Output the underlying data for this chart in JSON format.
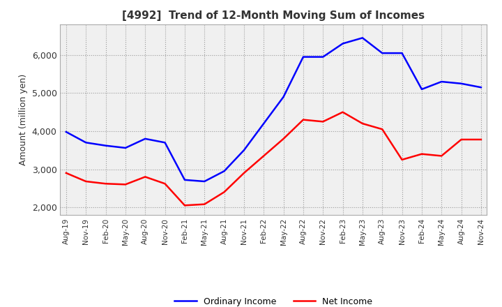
{
  "title": "[4992]  Trend of 12-Month Moving Sum of Incomes",
  "ylabel": "Amount (million yen)",
  "ylim": [
    1800,
    6800
  ],
  "yticks": [
    2000,
    3000,
    4000,
    5000,
    6000
  ],
  "legend_labels": [
    "Ordinary Income",
    "Net Income"
  ],
  "line_colors": [
    "blue",
    "red"
  ],
  "bg_color": "#f0f0f0",
  "x_labels": [
    "Aug-19",
    "Nov-19",
    "Feb-20",
    "May-20",
    "Aug-20",
    "Nov-20",
    "Feb-21",
    "May-21",
    "Aug-21",
    "Nov-21",
    "Feb-22",
    "May-22",
    "Aug-22",
    "Nov-22",
    "Feb-23",
    "May-23",
    "Aug-23",
    "Nov-23",
    "Feb-24",
    "May-24",
    "Aug-24",
    "Nov-24"
  ],
  "ordinary_income": [
    3980,
    3700,
    3620,
    3560,
    3800,
    3700,
    2720,
    2680,
    2950,
    3500,
    4200,
    4900,
    5950,
    5950,
    6300,
    6450,
    6050,
    6050,
    5100,
    5300,
    5250,
    5150
  ],
  "net_income": [
    2900,
    2680,
    2620,
    2600,
    2800,
    2620,
    2050,
    2080,
    2400,
    2900,
    3350,
    3800,
    4300,
    4250,
    4500,
    4200,
    4050,
    3250,
    3400,
    3350,
    3780,
    3780
  ]
}
